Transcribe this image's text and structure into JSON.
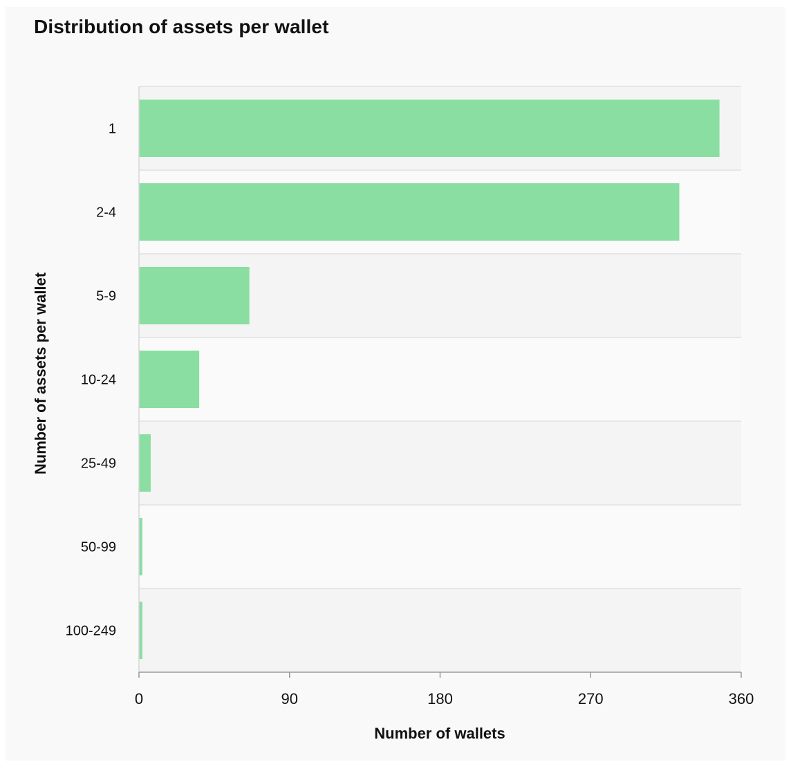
{
  "chart_data": {
    "type": "bar",
    "orientation": "horizontal",
    "title": "Distribution of assets per wallet",
    "xlabel": "Number of wallets",
    "ylabel": "Number of assets per wallet",
    "categories": [
      "1",
      "2-4",
      "5-9",
      "10-24",
      "25-49",
      "50-99",
      "100-249"
    ],
    "values": [
      347,
      323,
      66,
      36,
      7,
      2,
      2
    ],
    "xlim": [
      0,
      360
    ],
    "xticks": [
      "0",
      "90",
      "180",
      "270",
      "360"
    ],
    "bar_color": "#8ade a2",
    "band_colors": [
      "#f4f4f4",
      "#fafafa"
    ],
    "grid": false,
    "legend": "none"
  }
}
